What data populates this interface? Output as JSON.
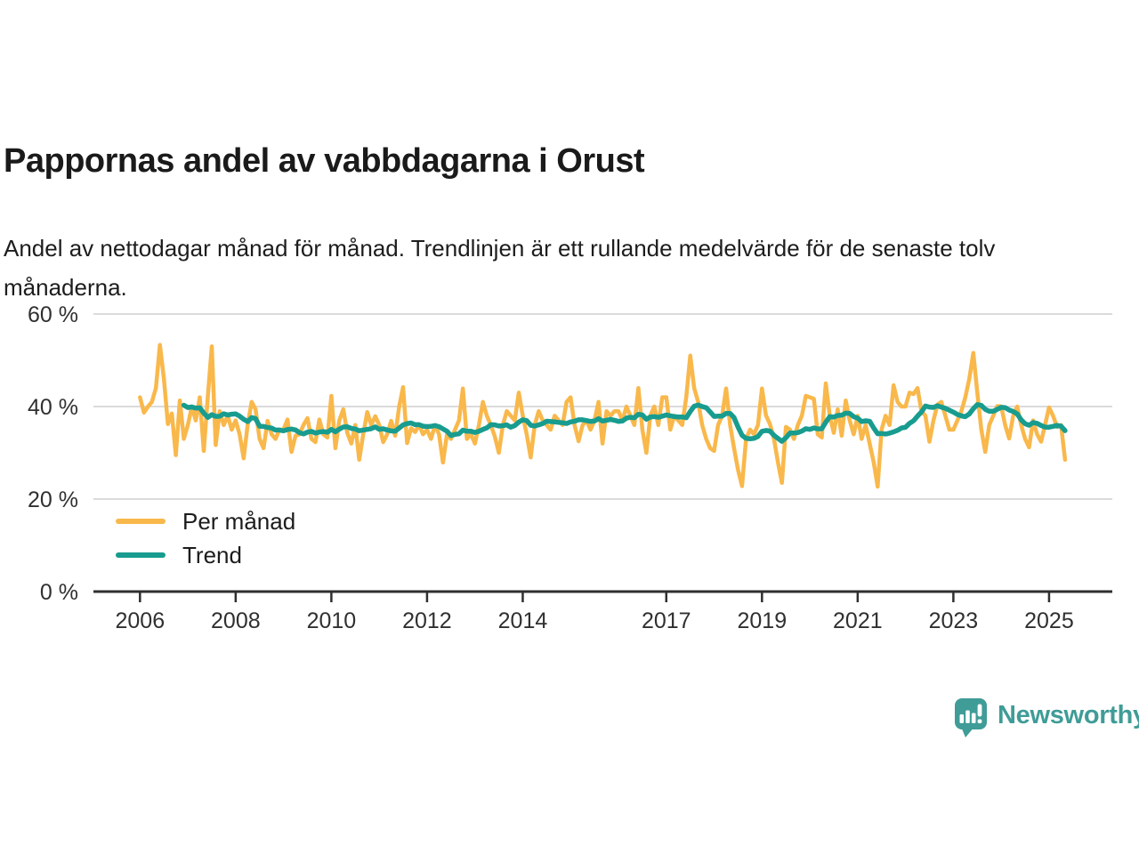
{
  "title": "Pappornas andel av vabbdagarna i Orust",
  "subtitle": "Andel av nettodagar månad för månad. Trendlinjen är ett rullande medelvärde för de senaste tolv månaderna.",
  "branding": {
    "name": "Newsworthy",
    "icon": "newsworthy-speech-bubble-bar-chart-icon",
    "color": "#3F9C97"
  },
  "colors": {
    "monthly_line": "#F9B84B",
    "trend_line": "#189C8F",
    "gridline": "#DBDBDB",
    "axis": "#2F2F2F",
    "tick_label": "#303030",
    "text": "#1a1a1a"
  },
  "chart_data": {
    "type": "line",
    "title": "Pappornas andel av vabbdagarna i Orust",
    "xlabel": "",
    "ylabel": "",
    "unit": "%",
    "grid": "horizontal",
    "legend_position": "inside-bottom-left",
    "ylim": [
      0,
      62
    ],
    "y_ticks": [
      0,
      20,
      40,
      60
    ],
    "y_tick_labels": [
      "0 %",
      "20 %",
      "40 %",
      "60 %"
    ],
    "x_tick_years": [
      2006,
      2008,
      2010,
      2012,
      2014,
      2017,
      2019,
      2021,
      2023,
      2025
    ],
    "x_start": "2006-01",
    "x_end": "2025-05",
    "x_resolution": "monthly",
    "series": [
      {
        "name": "Per månad",
        "color": "#F9B84B",
        "values": [
          42,
          38.7,
          40,
          41,
          44,
          53.3,
          46,
          36.2,
          38.5,
          29.5,
          41.3,
          33,
          36,
          40,
          37,
          42,
          30.4,
          42,
          53,
          31.7,
          39,
          36,
          38,
          35,
          37,
          34,
          28.8,
          36,
          41,
          39.4,
          33,
          31,
          36.9,
          34,
          33,
          35,
          35,
          37.2,
          30.2,
          33.7,
          34,
          36,
          37.5,
          33,
          32.3,
          37.2,
          34,
          33.3,
          42.3,
          31,
          37,
          39.4,
          34.3,
          32,
          36,
          28.5,
          34,
          38.8,
          36,
          37.9,
          36,
          32.3,
          34,
          36.9,
          33.7,
          40,
          44.2,
          32.1,
          35.3,
          34.5,
          36,
          34,
          35,
          33,
          36,
          34,
          27.9,
          34,
          33,
          35,
          37,
          43.9,
          33,
          34,
          32,
          36,
          41,
          38,
          36,
          33.5,
          30,
          36,
          39,
          38,
          37,
          43,
          38,
          34,
          29,
          36,
          39,
          37,
          36,
          35,
          38,
          37,
          36,
          41,
          42,
          36,
          32.5,
          36,
          37,
          35,
          37,
          41,
          32,
          39,
          38,
          39,
          39,
          37,
          40,
          38,
          36,
          44,
          35,
          30,
          38,
          40,
          36,
          42,
          42,
          35,
          38,
          37,
          36,
          42,
          51,
          44,
          41,
          36,
          33,
          31,
          30.4,
          36,
          38,
          43.9,
          36,
          31,
          26.3,
          22.8,
          33,
          35,
          34,
          36,
          43.9,
          38.1,
          36.2,
          33,
          28,
          23.5,
          35.6,
          35,
          33,
          36,
          38,
          42.3,
          42,
          41.7,
          34,
          33.3,
          45,
          38,
          34.3,
          39.4,
          33.7,
          41.3,
          37,
          34,
          38,
          33,
          36,
          32,
          28,
          22.7,
          35,
          38,
          36,
          44.6,
          41,
          40,
          40,
          43,
          42.7,
          44,
          39,
          38,
          32.4,
          37,
          40.4,
          41,
          38,
          35,
          35,
          37,
          39,
          42,
          46,
          51.6,
          43,
          35,
          30.2,
          36,
          38,
          40.1,
          40,
          36,
          33.1,
          38,
          40,
          36,
          33,
          31.2,
          37,
          34,
          32.4,
          36,
          39.8,
          38,
          35.6,
          36,
          28.5
        ]
      },
      {
        "name": "Trend",
        "color": "#189C8F",
        "derived": "rolling mean of the last 12 months of 'Per månad'"
      }
    ]
  }
}
